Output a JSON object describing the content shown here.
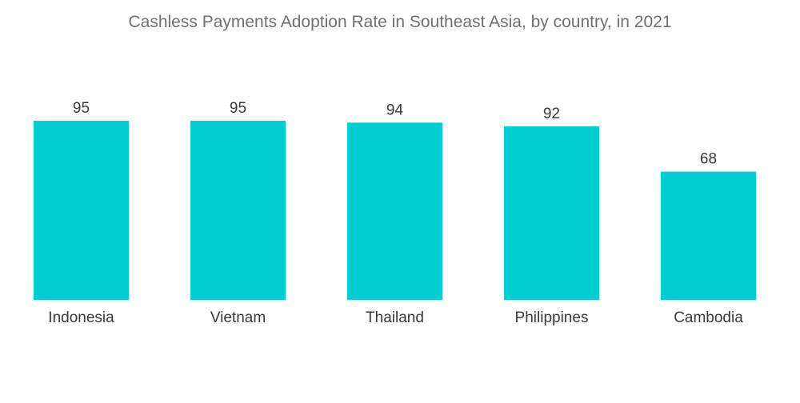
{
  "chart_data": {
    "type": "bar",
    "title": "Cashless Payments Adoption Rate in Southeast Asia, by country, in 2021",
    "categories": [
      "Indonesia",
      "Vietnam",
      "Thailand",
      "Philippines",
      "Cambodia"
    ],
    "values": [
      95,
      95,
      94,
      92,
      68
    ],
    "xlabel": "",
    "ylabel": "",
    "ylim": [
      0,
      95
    ],
    "grid": false,
    "legend": "none",
    "data_labels": true,
    "bar_color": "#00CED1"
  }
}
